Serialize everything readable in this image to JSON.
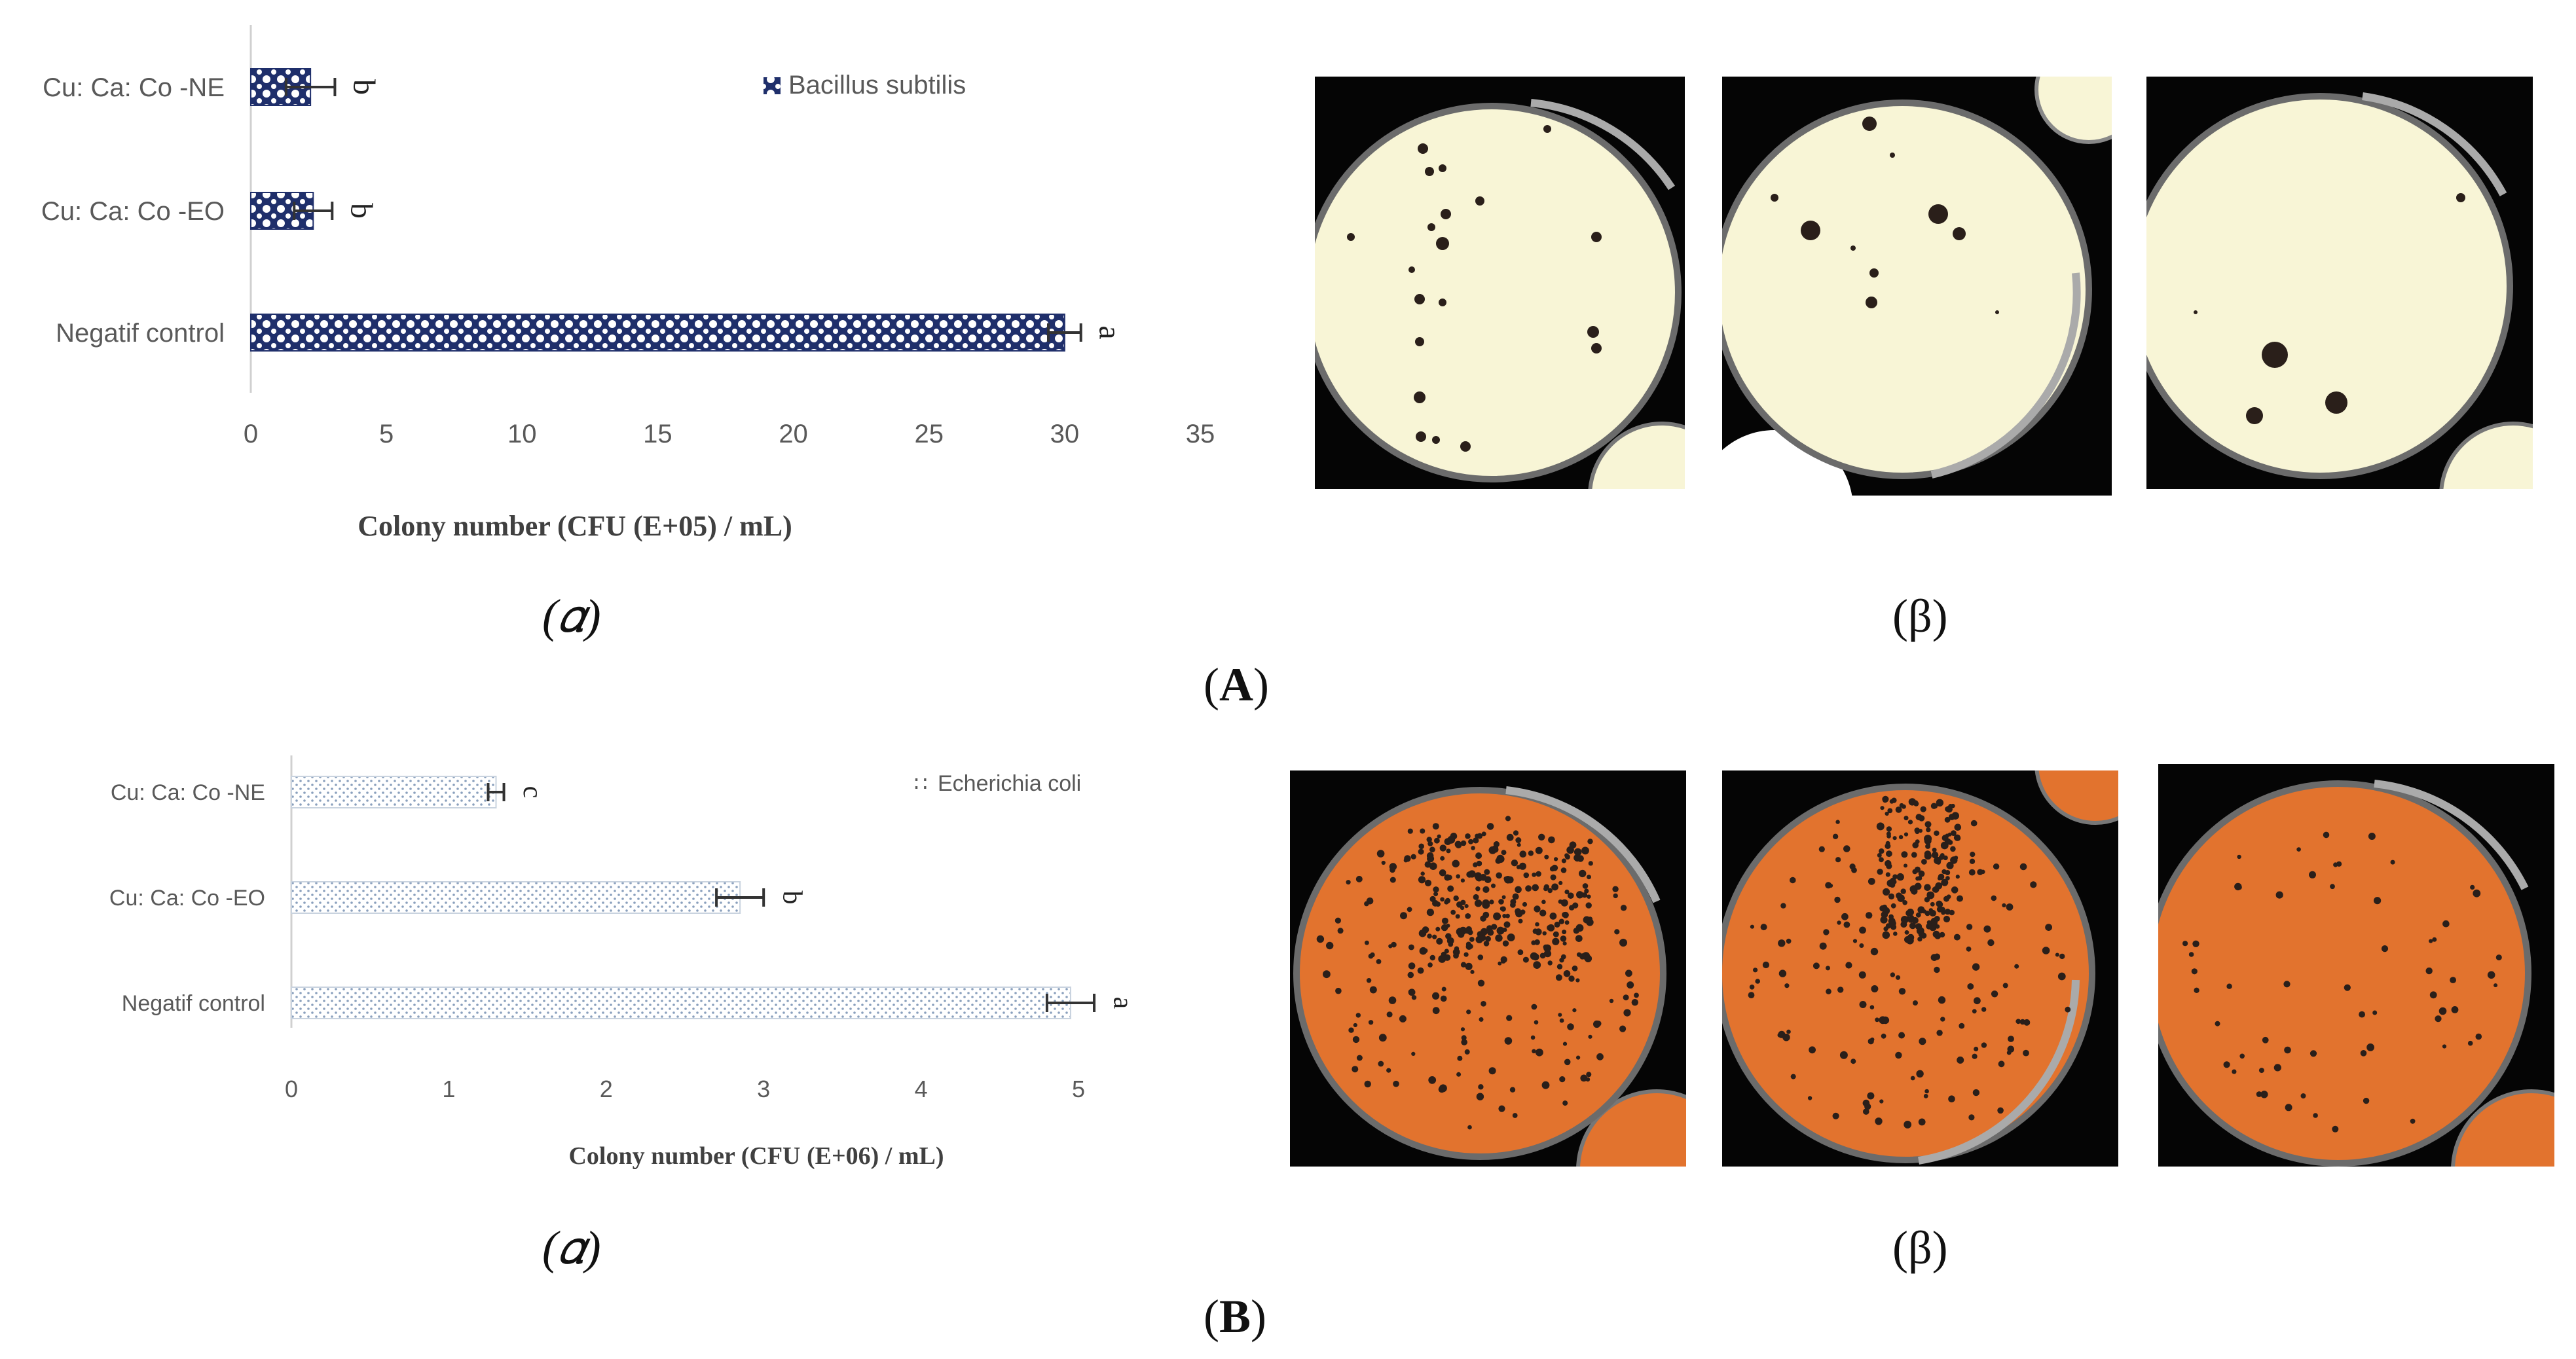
{
  "panel_A": {
    "caption_alpha": "(𝛼)",
    "caption_beta": "(β)",
    "label": "A"
  },
  "panel_B": {
    "caption_alpha": "(𝛼)",
    "caption_beta": "(β)",
    "label": "B"
  },
  "chart_data": [
    {
      "type": "bar",
      "orientation": "horizontal",
      "categories": [
        "Cu: Ca: Co -NE",
        "Cu: Ca: Co -EO",
        "Negatif control"
      ],
      "series": [
        {
          "name": "Bacillus subtilis",
          "values": [
            2.2,
            2.3,
            30.0
          ],
          "errors": [
            0.9,
            0.7,
            0.6
          ],
          "letters": [
            "b",
            "b",
            "a"
          ]
        }
      ],
      "xlabel": "Colony number (CFU (E+05) / mL)",
      "xlim": [
        0,
        35
      ],
      "xticks": [
        0,
        5,
        10,
        15,
        20,
        25,
        30,
        35
      ],
      "grid": false,
      "legend": "top-right",
      "bar_color": "#1f2f6b",
      "pattern": "circles"
    },
    {
      "type": "bar",
      "orientation": "horizontal",
      "categories": [
        "Cu: Ca: Co -NE",
        "Cu: Ca: Co -EO",
        "Negatif control"
      ],
      "series": [
        {
          "name": "Echerichia coli",
          "values": [
            1.3,
            2.85,
            4.95
          ],
          "errors": [
            0.05,
            0.15,
            0.15
          ],
          "letters": [
            "c",
            "b",
            "a"
          ]
        }
      ],
      "xlabel": "Colony number (CFU (E+06) / mL)",
      "xlim": [
        0,
        5
      ],
      "xticks": [
        0,
        1,
        2,
        3,
        4,
        5
      ],
      "grid": false,
      "legend": "top-right",
      "bar_color": "#9bb0c8",
      "pattern": "dots"
    }
  ],
  "colors": {
    "plateA_agar": "#f8f5d6",
    "plateB_agar": "#e2732e",
    "photo_background": "#050505",
    "colony": "#2a1f1a"
  }
}
